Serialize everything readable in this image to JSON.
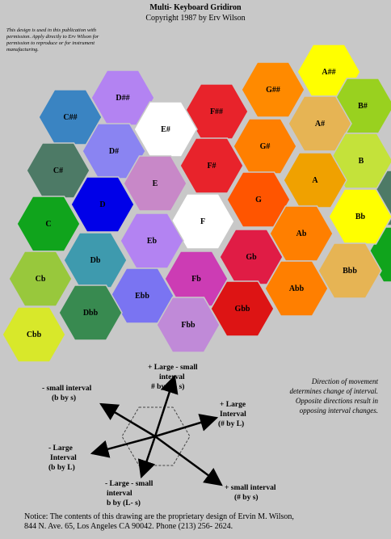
{
  "header": {
    "title": "Multi- Keyboard Gridiron",
    "copyright": "Copyright 1987 by Erv Wilson",
    "permission": "This design is used in this publication with permission. Apply directly to Erv Wilson for permission to reproduce or for instrument manufacturing."
  },
  "hexagons": [
    {
      "label": "A##",
      "color": "#ffff00"
    },
    {
      "label": "G##",
      "color": "#ff8a00"
    },
    {
      "label": "B#",
      "color": "#99d11f"
    },
    {
      "label": "A#",
      "color": "#e6b454"
    },
    {
      "label": "F##",
      "color": "#e8232b"
    },
    {
      "label": "G#",
      "color": "#ff7f00"
    },
    {
      "label": "D##",
      "color": "#b383f2"
    },
    {
      "label": "C##",
      "color": "#3a84c2"
    },
    {
      "label": "E#",
      "color": "#ffffff"
    },
    {
      "label": "D#",
      "color": "#8a84f2"
    },
    {
      "label": "F#",
      "color": "#e8232b"
    },
    {
      "label": "B",
      "color": "#c4e23a"
    },
    {
      "label": "A",
      "color": "#f0a100"
    },
    {
      "label": "C#",
      "color": "#4d7a66"
    },
    {
      "label": "E",
      "color": "#c888c8"
    },
    {
      "label": "G",
      "color": "#ff5500"
    },
    {
      "label": "D",
      "color": "#0000e8"
    },
    {
      "label": "Bb",
      "color": "#ffff00"
    },
    {
      "label": "F",
      "color": "#ffffff"
    },
    {
      "label": "C",
      "color": "#10a41c"
    },
    {
      "label": "Ab",
      "color": "#ff7f00"
    },
    {
      "label": "Eb",
      "color": "#b383f2"
    },
    {
      "label": "Db",
      "color": "#3e9aae"
    },
    {
      "label": "Gb",
      "color": "#e01c45"
    },
    {
      "label": "Bbb",
      "color": "#e6b454"
    },
    {
      "label": "Fb",
      "color": "#cc3cb4"
    },
    {
      "label": "Cb",
      "color": "#98c83c"
    },
    {
      "label": "Abb",
      "color": "#ff7f00"
    },
    {
      "label": "Ebb",
      "color": "#7a74f2"
    },
    {
      "label": "Dbb",
      "color": "#388a50"
    },
    {
      "label": "Gbb",
      "color": "#dd1414"
    },
    {
      "label": "Fbb",
      "color": "#c08ad8"
    },
    {
      "label": "Cbb",
      "color": "#d8e82a"
    }
  ],
  "direction_labels": {
    "top": [
      "+ Large -  small",
      "interval",
      "# by (L- s)"
    ],
    "upper_left": [
      "-  small interval",
      "(b by s)"
    ],
    "right": [
      "+ Large",
      "Interval",
      "(# by L)"
    ],
    "left": [
      "-  Large",
      "Interval",
      "(b by L)"
    ],
    "bottom": [
      "- Large -  small",
      "interval",
      "b by (L- s)"
    ],
    "lower_right": [
      "+ small interval",
      "(# by s)"
    ]
  },
  "note": "Direction of movement determines change of interval. Opposite directions result in opposing interval changes.",
  "notice": {
    "line1": "Notice:  The contents of this drawing are the proprietary design of Ervin M. Wilson,",
    "line2": "844 N. Ave. 65, Los Angeles CA 90042. Phone (213) 256- 2624."
  }
}
